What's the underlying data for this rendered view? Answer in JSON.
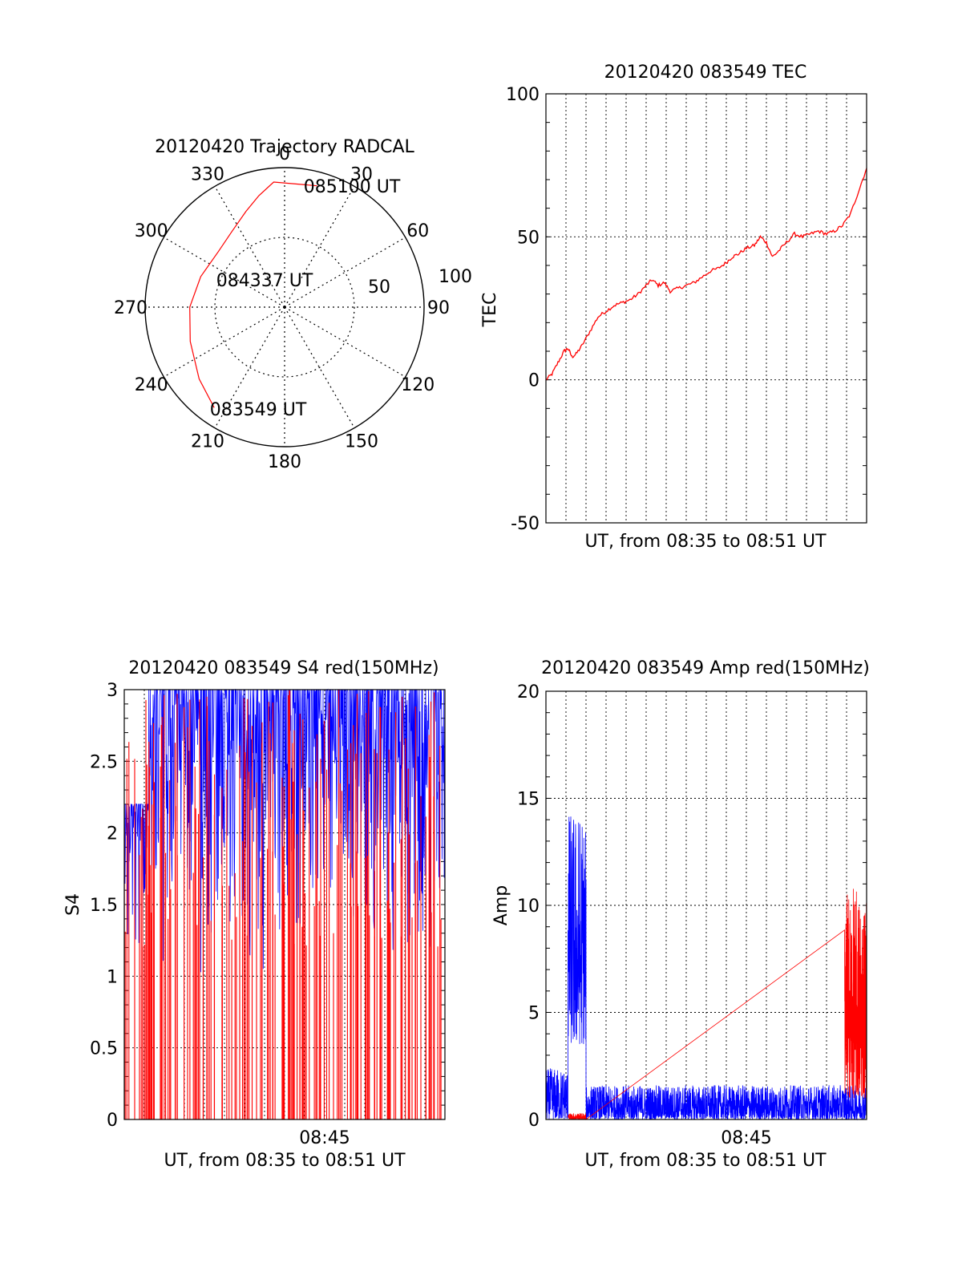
{
  "chart_data": [
    {
      "type": "polar",
      "title": "20120420 Trajectory RADCAL",
      "angle_labels": [
        "0",
        "30",
        "60",
        "90",
        "120",
        "150",
        "180",
        "210",
        "240",
        "270",
        "300",
        "330"
      ],
      "radial_labels": [
        "50",
        "100"
      ],
      "rlim": [
        0,
        100
      ],
      "grid": true,
      "trajectory": {
        "color": "#ff0000",
        "points": [
          {
            "az": 215,
            "r": 88
          },
          {
            "az": 230,
            "r": 80
          },
          {
            "az": 250,
            "r": 72
          },
          {
            "az": 270,
            "r": 68
          },
          {
            "az": 290,
            "r": 64
          },
          {
            "az": 310,
            "r": 62
          },
          {
            "az": 325,
            "r": 66
          },
          {
            "az": 338,
            "r": 74
          },
          {
            "az": 347,
            "r": 82
          },
          {
            "az": 355,
            "r": 90
          },
          {
            "az": 15,
            "r": 90
          }
        ]
      },
      "annotations": [
        {
          "text": "083549 UT",
          "az": 208,
          "r": 78
        },
        {
          "text": "084337 UT",
          "az": 290,
          "r": 32
        },
        {
          "text": "085100 UT",
          "az": 24,
          "r": 92
        }
      ]
    },
    {
      "type": "line",
      "title": "20120420 083549 TEC",
      "xlabel": "UT, from 08:35 to 08:51 UT",
      "ylabel": "TEC",
      "xlim": [
        0,
        16
      ],
      "ylim": [
        -50,
        100
      ],
      "yticks": [
        "-50",
        "0",
        "50",
        "100"
      ],
      "grid": true,
      "series": [
        {
          "color": "#ff0000",
          "x": [
            0.0,
            0.3,
            0.6,
            0.9,
            1.1,
            1.3,
            1.5,
            1.8,
            2.2,
            2.6,
            3.0,
            3.4,
            3.8,
            4.2,
            4.6,
            5.0,
            5.3,
            5.6,
            5.9,
            6.2,
            6.6,
            7.0,
            7.4,
            7.8,
            8.2,
            8.6,
            9.0,
            9.3,
            9.6,
            10.0,
            10.4,
            10.7,
            11.0,
            11.3,
            11.6,
            12.0,
            12.4,
            12.8,
            13.2,
            13.6,
            14.0,
            14.4,
            14.8,
            15.2,
            15.6,
            16.0
          ],
          "y": [
            0,
            2,
            6,
            10,
            11,
            8,
            9,
            12,
            17,
            22,
            24,
            26,
            27,
            28,
            30,
            33,
            35,
            33,
            34,
            31,
            32,
            33,
            34,
            36,
            38,
            39,
            41,
            43,
            44,
            46,
            47,
            50,
            48,
            43,
            45,
            48,
            51,
            50,
            51,
            52,
            51,
            52,
            54,
            58,
            66,
            74
          ]
        }
      ]
    },
    {
      "type": "line",
      "title": "20120420 083549 S4 red(150MHz)",
      "xlabel": "UT, from 08:35 to 08:51 UT",
      "ylabel": "S4",
      "xlim": [
        0,
        16
      ],
      "ylim": [
        0,
        3
      ],
      "yticks": [
        "0",
        "0.5",
        "1",
        "1.5",
        "2",
        "2.5",
        "3"
      ],
      "xtick_label": "08:45",
      "xtick_at": 8.5,
      "grid": true,
      "series": [
        {
          "color": "#0000ff",
          "style": "dense-noise",
          "y_min": 0.9,
          "y_max": 3.0,
          "x_range": [
            0,
            16
          ]
        },
        {
          "color": "#ff0000",
          "style": "dense-spikes",
          "y_min": 0.0,
          "y_max": 3.0,
          "x_range": [
            0,
            16
          ]
        }
      ]
    },
    {
      "type": "line",
      "title": "20120420 083549 Amp red(150MHz)",
      "xlabel": "UT, from 08:35 to 08:51 UT",
      "ylabel": "Amp",
      "xlim": [
        0,
        16
      ],
      "ylim": [
        0,
        20
      ],
      "yticks": [
        "0",
        "5",
        "10",
        "15",
        "20"
      ],
      "xtick_label": "08:45",
      "xtick_at": 8.5,
      "grid": true,
      "series": [
        {
          "color": "#0000ff",
          "style": "dense-noise",
          "segments": [
            {
              "x_range": [
                0.0,
                1.1
              ],
              "y_min": 0.0,
              "y_max": 2.4
            },
            {
              "x_range": [
                1.1,
                2.0
              ],
              "y_min": 3.5,
              "y_max": 14.5
            },
            {
              "x_range": [
                2.0,
                16.0
              ],
              "y_min": 0.0,
              "y_max": 1.6
            }
          ]
        },
        {
          "color": "#ff0000",
          "style": "dense-noise",
          "segments": [
            {
              "x_range": [
                1.1,
                2.0
              ],
              "y_min": 0.0,
              "y_max": 0.3
            },
            {
              "x_range": [
                14.9,
                16.0
              ],
              "y_min": 1.0,
              "y_max": 10.8
            }
          ]
        }
      ]
    }
  ]
}
